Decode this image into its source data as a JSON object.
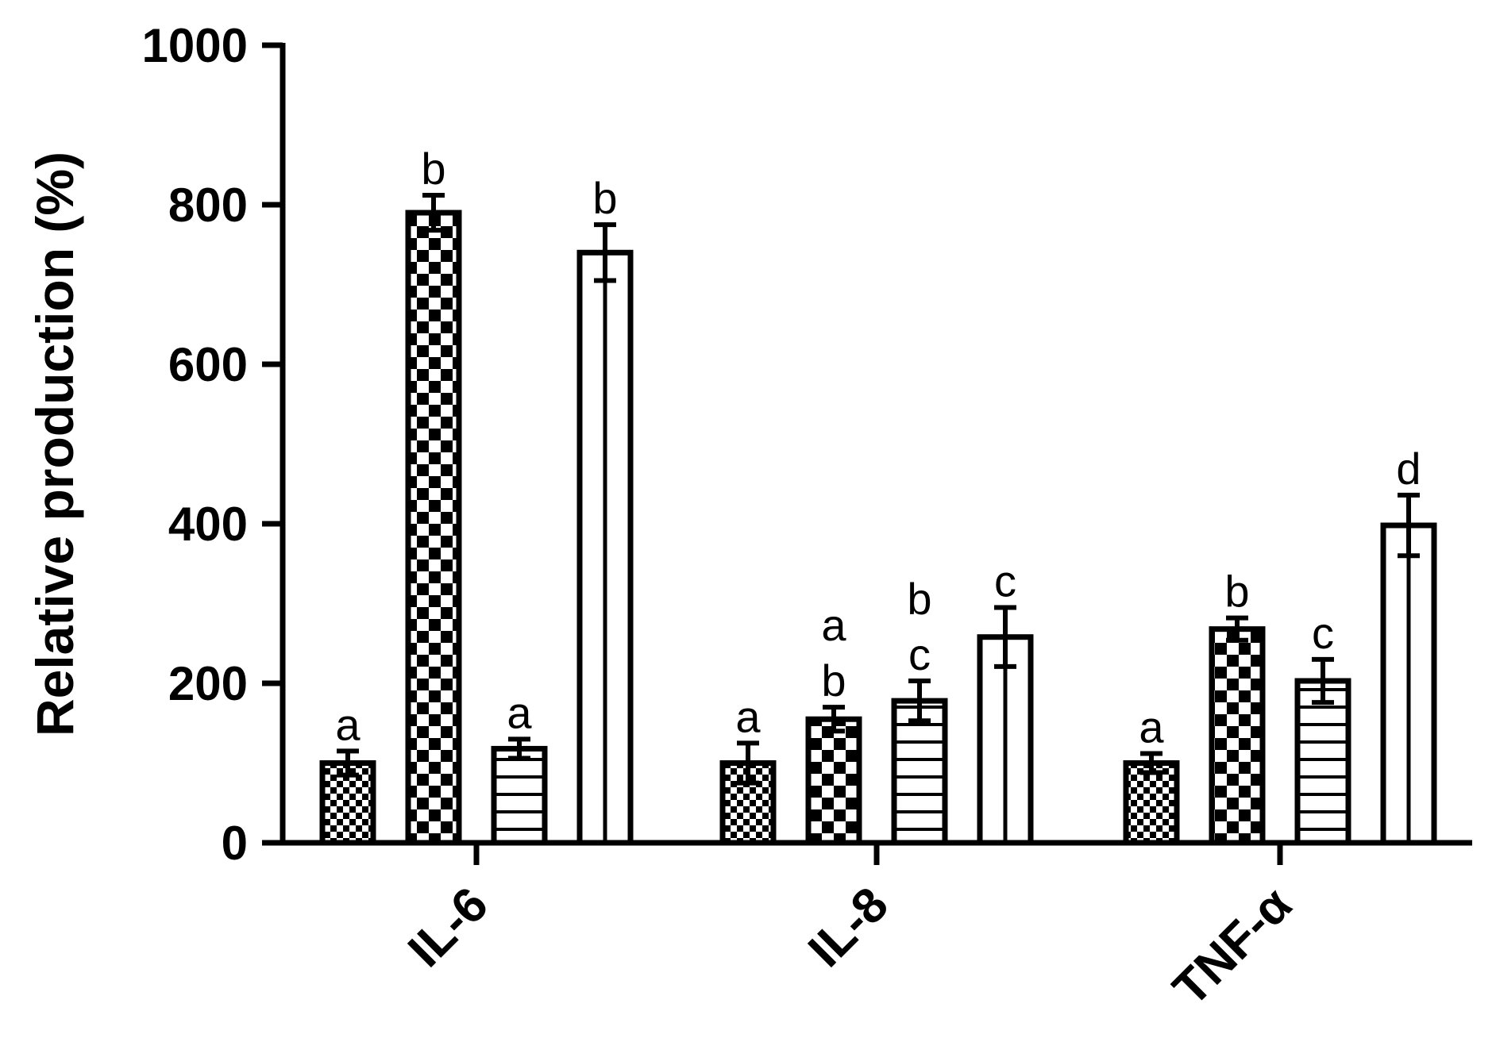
{
  "chart_data": {
    "type": "bar",
    "title": "",
    "ylabel": "Relative production (%)",
    "xlabel": "",
    "ylim": [
      0,
      1000
    ],
    "yticks": [
      "0",
      "200",
      "400",
      "600",
      "800",
      "1000"
    ],
    "categories": [
      "IL-6",
      "IL-8",
      "TNF-α"
    ],
    "grid": false,
    "legend": "none",
    "series": [
      {
        "pattern": "fine-checker",
        "values": [
          100,
          100,
          100
        ],
        "errors": [
          15,
          25,
          12
        ],
        "labels": [
          [
            "a"
          ],
          [
            "a"
          ],
          [
            "a"
          ]
        ]
      },
      {
        "pattern": "coarse-checker",
        "values": [
          790,
          155,
          268
        ],
        "errors": [
          22,
          15,
          14
        ],
        "labels": [
          [
            "b"
          ],
          [
            "b",
            "a"
          ],
          [
            "b"
          ]
        ]
      },
      {
        "pattern": "horizontal-stripes",
        "values": [
          118,
          178,
          203
        ],
        "errors": [
          12,
          25,
          27
        ],
        "labels": [
          [
            "a"
          ],
          [
            "c",
            "b"
          ],
          [
            "c"
          ]
        ]
      },
      {
        "pattern": "vertical-stripe",
        "values": [
          740,
          258,
          398
        ],
        "errors": [
          35,
          37,
          38
        ],
        "labels": [
          [
            "b"
          ],
          [
            "c"
          ],
          [
            "d"
          ]
        ]
      }
    ]
  },
  "colors": {
    "ink": "#000000",
    "background": "#ffffff"
  }
}
